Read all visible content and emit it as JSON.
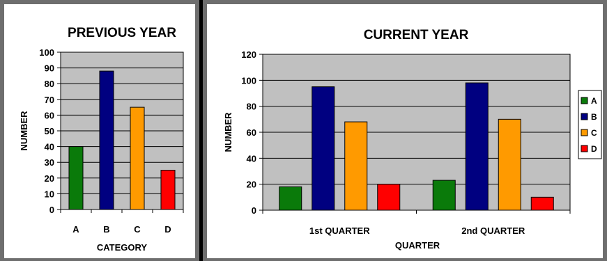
{
  "chart_data": [
    {
      "type": "bar",
      "title": "PREVIOUS YEAR",
      "xlabel": "CATEGORY",
      "ylabel": "NUMBER",
      "categories": [
        "A",
        "B",
        "C",
        "D"
      ],
      "values": [
        40,
        88,
        65,
        25
      ],
      "colors": [
        "#0a7a0a",
        "#000080",
        "#ff9a00",
        "#ff0000"
      ],
      "ylim": [
        0,
        100
      ],
      "yticks": [
        "0",
        "10",
        "20",
        "30",
        "40",
        "50",
        "60",
        "70",
        "80",
        "90",
        "100"
      ],
      "grid": true,
      "plot_background": "#c0c0c0"
    },
    {
      "type": "bar",
      "title": "CURRENT YEAR",
      "xlabel": "QUARTER",
      "ylabel": "NUMBER",
      "categories": [
        "1st QUARTER",
        "2nd QUARTER"
      ],
      "series": [
        {
          "name": "A",
          "values": [
            18,
            23
          ],
          "color": "#0a7a0a"
        },
        {
          "name": "B",
          "values": [
            95,
            98
          ],
          "color": "#000080"
        },
        {
          "name": "C",
          "values": [
            68,
            70
          ],
          "color": "#ff9a00"
        },
        {
          "name": "D",
          "values": [
            20,
            10
          ],
          "color": "#ff0000"
        }
      ],
      "ylim": [
        0,
        120
      ],
      "yticks": [
        "0",
        "20",
        "40",
        "60",
        "80",
        "100",
        "120"
      ],
      "grid": true,
      "legend": "right",
      "plot_background": "#c0c0c0"
    }
  ]
}
